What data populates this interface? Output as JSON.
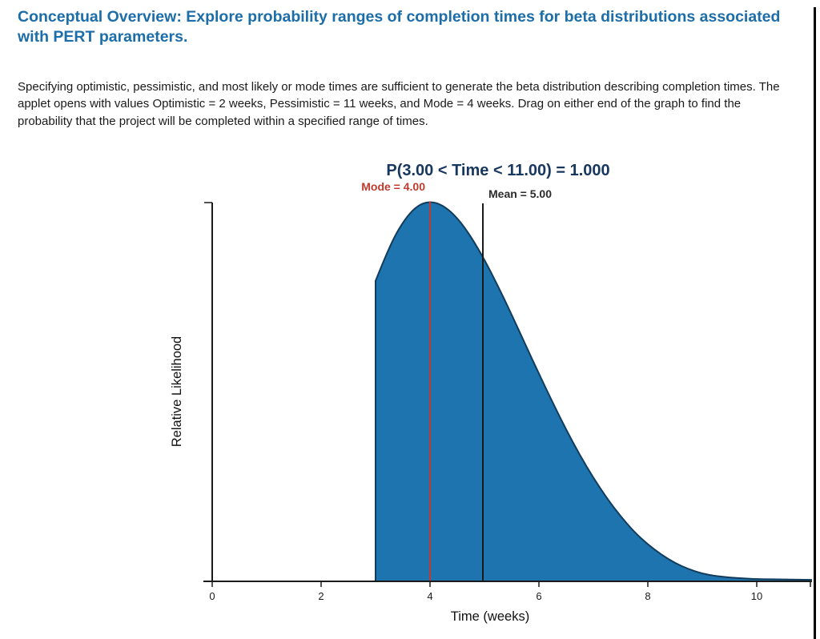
{
  "header": {
    "title": "Conceptual Overview: Explore probability ranges of completion times for beta distributions associated with PERT parameters.",
    "color": "#1c6da8"
  },
  "intro": {
    "text": "Specifying optimistic, pessimistic, and most likely or mode times are sufficient to generate the beta distribution describing completion times. The applet opens with values Optimistic = 2 weeks, Pessimistic = 11 weeks, and Mode = 4 weeks. Drag on either end of the graph to find the probability that the project will be completed within a specified range of times."
  },
  "chart_data": {
    "type": "area",
    "title": "P(3.00 < Time < 11.00) = 1.000",
    "xlabel": "Time (weeks)",
    "ylabel": "Relative Likelihood",
    "x_ticks": [
      0,
      2,
      4,
      6,
      8,
      10
    ],
    "xlim": [
      0,
      11
    ],
    "ylim_relative": [
      0,
      1.05
    ],
    "grid": false,
    "legend": false,
    "distribution": {
      "family": "beta (PERT)",
      "optimistic_weeks": 2,
      "pessimistic_weeks": 11,
      "mode_weeks": 4,
      "mean_weeks": 5,
      "range_low": "3.00",
      "range_high": "11.00",
      "probability": "1.000"
    },
    "annotations": {
      "mode_label": "Mode = 4.00",
      "mean_label": "Mean = 5.00"
    },
    "colors": {
      "fill": "#1e74ae",
      "curve_stroke": "#123c5c",
      "mode_line": "#bf3b2f",
      "mean_line": "#1a1a1a",
      "title": "#17375d",
      "mean_label": "#2b2b2b"
    },
    "curve_points": [
      [
        3.0,
        0.79
      ],
      [
        3.25,
        0.88
      ],
      [
        3.5,
        0.945
      ],
      [
        3.75,
        0.987
      ],
      [
        4.0,
        1.0
      ],
      [
        4.25,
        0.988
      ],
      [
        4.5,
        0.956
      ],
      [
        4.75,
        0.907
      ],
      [
        5.0,
        0.846
      ],
      [
        5.25,
        0.776
      ],
      [
        5.5,
        0.701
      ],
      [
        5.75,
        0.623
      ],
      [
        6.0,
        0.546
      ],
      [
        6.25,
        0.471
      ],
      [
        6.5,
        0.399
      ],
      [
        6.75,
        0.332
      ],
      [
        7.0,
        0.272
      ],
      [
        7.25,
        0.218
      ],
      [
        7.5,
        0.171
      ],
      [
        7.75,
        0.13
      ],
      [
        8.0,
        0.097
      ],
      [
        8.25,
        0.07
      ],
      [
        8.5,
        0.048
      ],
      [
        8.75,
        0.032
      ],
      [
        9.0,
        0.02
      ],
      [
        9.25,
        0.014
      ],
      [
        9.5,
        0.01
      ],
      [
        9.75,
        0.008
      ],
      [
        10.0,
        0.006
      ],
      [
        10.5,
        0.005
      ],
      [
        11.0,
        0.004
      ]
    ]
  }
}
